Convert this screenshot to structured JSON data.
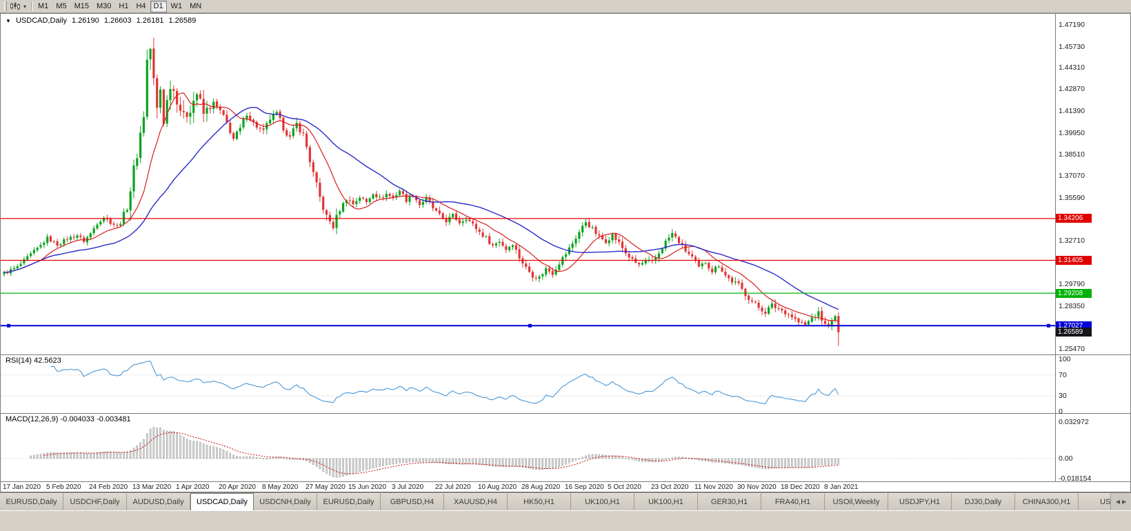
{
  "icons": {
    "symbol_marker": "▼",
    "chart_type_caret": "▾",
    "tab_scroll_left": "◀",
    "tab_scroll_right": "▶"
  },
  "toolbar": {
    "timeframes": [
      "M1",
      "M5",
      "M15",
      "M30",
      "H1",
      "H4",
      "D1",
      "W1",
      "MN"
    ],
    "active_timeframe": "D1"
  },
  "chart": {
    "symbol": "USDCAD,Daily",
    "ohlc": {
      "open": "1.26190",
      "high": "1.26603",
      "low": "1.26181",
      "close": "1.26589"
    },
    "price_axis_labels": [
      "1.47190",
      "1.45730",
      "1.44310",
      "1.42870",
      "1.41390",
      "1.39950",
      "1.38510",
      "1.37070",
      "1.35590",
      "1.34150",
      "1.32710",
      "1.31270",
      "1.29790",
      "1.28350",
      "1.26910",
      "1.25470"
    ],
    "date_labels": [
      "17 Jan 2020",
      "5 Feb 2020",
      "24 Feb 2020",
      "13 Mar 2020",
      "1 Apr 2020",
      "20 Apr 2020",
      "8 May 2020",
      "27 May 2020",
      "15 Jun 2020",
      "3 Jul 2020",
      "22 Jul 2020",
      "10 Aug 2020",
      "28 Aug 2020",
      "16 Sep 2020",
      "5 Oct 2020",
      "23 Oct 2020",
      "11 Nov 2020",
      "30 Nov 2020",
      "18 Dec 2020",
      "8 Jan 2021"
    ],
    "price_markers": [
      {
        "label": "1.34206",
        "price": 1.34206,
        "color": "#e00000",
        "has_line": true,
        "selected": false
      },
      {
        "label": "1.31405",
        "price": 1.31405,
        "color": "#e00000",
        "has_line": true,
        "selected": false
      },
      {
        "label": "1.29208",
        "price": 1.29208,
        "color": "#00b207",
        "has_line": true,
        "selected": false
      },
      {
        "label": "1.27027",
        "price": 1.27027,
        "color": "#0000d8",
        "has_line": true,
        "selected": true
      },
      {
        "label": "1.26589",
        "price": 1.26589,
        "color": "#16161a",
        "has_line": false,
        "selected": false
      }
    ],
    "rsi": {
      "label": "RSI(14)",
      "value": "42.5623",
      "axis_labels": [
        "100",
        "70",
        "30",
        "0"
      ],
      "level_lines": [
        70,
        30
      ]
    },
    "macd": {
      "label": "MACD(12,26,9)",
      "values": "-0.004033 -0.003481",
      "axis_labels": [
        "0.032972",
        "0.00",
        "-0.018154"
      ]
    }
  },
  "chart_data": {
    "type": "candlestick",
    "symbol": "USDCAD",
    "timeframe": "Daily",
    "n_candles": 252,
    "price_range": {
      "min": 1.2547,
      "max": 1.4719
    },
    "up_color": "#0aa31e",
    "down_color": "#e23434",
    "ma_fast": {
      "period": 12,
      "color": "#d81c1c"
    },
    "ma_slow": {
      "period": 34,
      "color": "#2a2ac8"
    },
    "rsi_color": "#4a97d6",
    "macd_hist_fill": "#dadada",
    "macd_hist_stroke": "#8c8c8c",
    "macd_signal_color": "#cc0000",
    "final_low": 1.2566,
    "close_anchors": [
      [
        0,
        1.3055
      ],
      [
        4,
        1.3095
      ],
      [
        8,
        1.318
      ],
      [
        11,
        1.324
      ],
      [
        13,
        1.329
      ],
      [
        16,
        1.3245
      ],
      [
        19,
        1.3285
      ],
      [
        22,
        1.331
      ],
      [
        24,
        1.327
      ],
      [
        26,
        1.332
      ],
      [
        28,
        1.339
      ],
      [
        30,
        1.343
      ],
      [
        32,
        1.3395
      ],
      [
        34,
        1.337
      ],
      [
        36,
        1.342
      ],
      [
        38,
        1.362
      ],
      [
        40,
        1.386
      ],
      [
        42,
        1.412
      ],
      [
        43,
        1.448
      ],
      [
        44,
        1.456
      ],
      [
        45,
        1.434
      ],
      [
        46,
        1.415
      ],
      [
        47,
        1.429
      ],
      [
        48,
        1.408
      ],
      [
        50,
        1.433
      ],
      [
        52,
        1.423
      ],
      [
        54,
        1.409
      ],
      [
        56,
        1.417
      ],
      [
        58,
        1.426
      ],
      [
        60,
        1.412
      ],
      [
        63,
        1.419
      ],
      [
        65,
        1.414
      ],
      [
        67,
        1.406
      ],
      [
        69,
        1.3955
      ],
      [
        71,
        1.402
      ],
      [
        73,
        1.413
      ],
      [
        75,
        1.406
      ],
      [
        78,
        1.4
      ],
      [
        80,
        1.409
      ],
      [
        82,
        1.412
      ],
      [
        84,
        1.403
      ],
      [
        86,
        1.396
      ],
      [
        88,
        1.4055
      ],
      [
        90,
        1.398
      ],
      [
        91,
        1.39
      ],
      [
        93,
        1.372
      ],
      [
        95,
        1.356
      ],
      [
        97,
        1.343
      ],
      [
        99,
        1.337
      ],
      [
        101,
        1.348
      ],
      [
        103,
        1.3555
      ],
      [
        105,
        1.352
      ],
      [
        107,
        1.3565
      ],
      [
        109,
        1.353
      ],
      [
        111,
        1.3595
      ],
      [
        113,
        1.3555
      ],
      [
        115,
        1.3585
      ],
      [
        117,
        1.356
      ],
      [
        119,
        1.361
      ],
      [
        121,
        1.3545
      ],
      [
        123,
        1.358
      ],
      [
        125,
        1.3515
      ],
      [
        127,
        1.3555
      ],
      [
        129,
        1.349
      ],
      [
        131,
        1.344
      ],
      [
        133,
        1.3405
      ],
      [
        135,
        1.344
      ],
      [
        137,
        1.3395
      ],
      [
        139,
        1.3425
      ],
      [
        141,
        1.338
      ],
      [
        143,
        1.333
      ],
      [
        145,
        1.329
      ],
      [
        147,
        1.324
      ],
      [
        149,
        1.327
      ],
      [
        151,
        1.3215
      ],
      [
        153,
        1.3255
      ],
      [
        155,
        1.316
      ],
      [
        157,
        1.309
      ],
      [
        159,
        1.304
      ],
      [
        161,
        1.3025
      ],
      [
        163,
        1.3085
      ],
      [
        165,
        1.3055
      ],
      [
        167,
        1.3125
      ],
      [
        169,
        1.3185
      ],
      [
        171,
        1.3255
      ],
      [
        173,
        1.333
      ],
      [
        175,
        1.34
      ],
      [
        177,
        1.335
      ],
      [
        179,
        1.3295
      ],
      [
        181,
        1.327
      ],
      [
        183,
        1.331
      ],
      [
        185,
        1.3255
      ],
      [
        187,
        1.319
      ],
      [
        189,
        1.314
      ],
      [
        191,
        1.311
      ],
      [
        193,
        1.313
      ],
      [
        195,
        1.3125
      ],
      [
        197,
        1.319
      ],
      [
        199,
        1.3265
      ],
      [
        201,
        1.332
      ],
      [
        203,
        1.3265
      ],
      [
        205,
        1.3205
      ],
      [
        207,
        1.316
      ],
      [
        209,
        1.309
      ],
      [
        211,
        1.313
      ],
      [
        213,
        1.307
      ],
      [
        215,
        1.311
      ],
      [
        217,
        1.304
      ],
      [
        219,
        1.3
      ],
      [
        221,
        1.2975
      ],
      [
        223,
        1.2915
      ],
      [
        225,
        1.2865
      ],
      [
        227,
        1.2825
      ],
      [
        229,
        1.2795
      ],
      [
        231,
        1.284
      ],
      [
        233,
        1.2815
      ],
      [
        235,
        1.2795
      ],
      [
        237,
        1.2765
      ],
      [
        239,
        1.2725
      ],
      [
        241,
        1.2705
      ],
      [
        243,
        1.2755
      ],
      [
        245,
        1.2785
      ],
      [
        247,
        1.2705
      ],
      [
        249,
        1.2725
      ],
      [
        250,
        1.276
      ],
      [
        251,
        1.26589
      ]
    ],
    "volatility_zones": [
      [
        0,
        36,
        0.002
      ],
      [
        36,
        62,
        0.0085
      ],
      [
        62,
        90,
        0.0036
      ],
      [
        90,
        101,
        0.0046
      ],
      [
        101,
        155,
        0.0026
      ],
      [
        155,
        220,
        0.0028
      ],
      [
        220,
        252,
        0.003
      ]
    ]
  },
  "tabs": {
    "items": [
      "EURUSD,Daily",
      "USDCHF,Daily",
      "AUDUSD,Daily",
      "USDCAD,Daily",
      "USDCNH,Daily",
      "EURUSD,Daily",
      "GBPUSD,H4",
      "XAUUSD,H4",
      "HK50,H1",
      "UK100,H1",
      "UK100,H1",
      "GER30,H1",
      "FRA40,H1",
      "USOil,Weekly",
      "USDJPY,H1",
      "DJ30,Daily",
      "CHINA300,H1",
      "USOil"
    ],
    "active_index": 3
  }
}
